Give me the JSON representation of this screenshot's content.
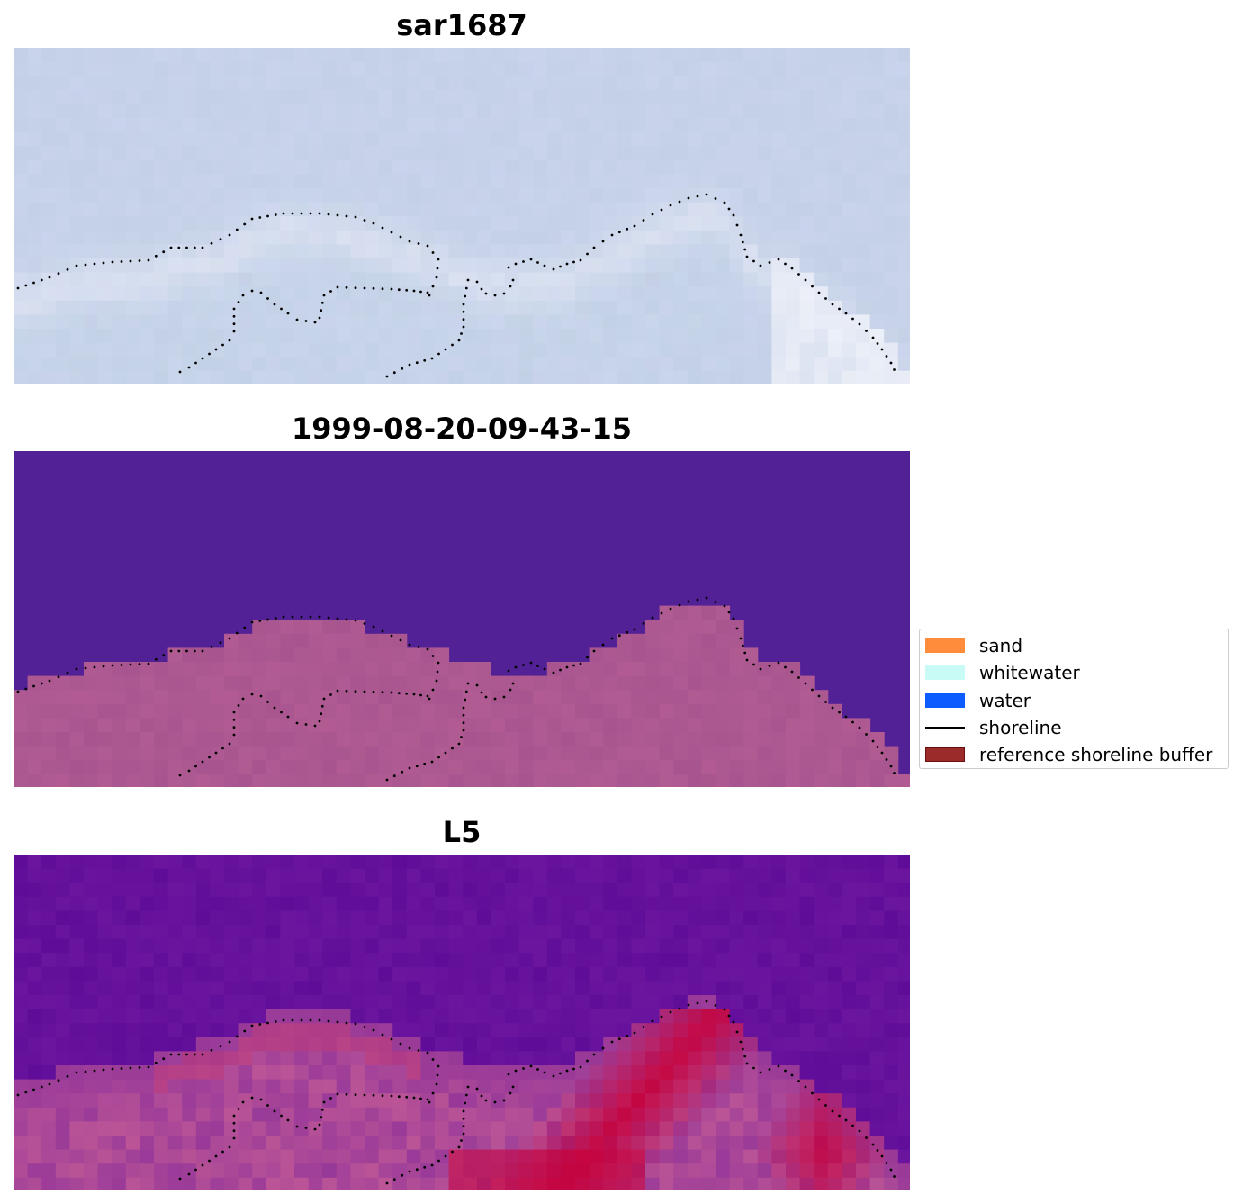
{
  "panels": [
    {
      "title": "sar1687",
      "style": "sar"
    },
    {
      "title": "1999-08-20-09-43-15",
      "style": "classified"
    },
    {
      "title": "L5",
      "style": "index"
    }
  ],
  "legend": {
    "items": [
      {
        "label": "sand",
        "color": "#ff8c3a",
        "kind": "patch"
      },
      {
        "label": "whitewater",
        "color": "#c8fbf6",
        "kind": "patch"
      },
      {
        "label": "water",
        "color": "#0d5cff",
        "kind": "patch"
      },
      {
        "label": "shoreline",
        "color": "#000000",
        "kind": "line"
      },
      {
        "label": "reference shoreline buffer",
        "color": "#9b2a2a",
        "kind": "patch"
      }
    ]
  },
  "colors": {
    "water_class": "#532196",
    "land_class": "#a8558f",
    "sar_base": "#c3d0e6",
    "index_low": "#5f0d99",
    "index_high": "#c6003a"
  }
}
